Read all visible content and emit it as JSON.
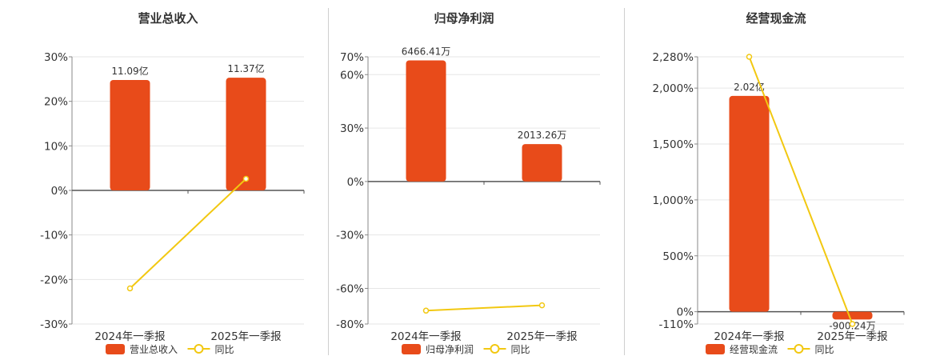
{
  "chart_data": [
    {
      "type": "bar",
      "title": "营业总收入",
      "categories": [
        "2024年一季报",
        "2025年一季报"
      ],
      "series": [
        {
          "name": "营业总收入",
          "kind": "bar",
          "values": [
            24.8,
            25.3
          ],
          "labels": [
            "11.09亿",
            "11.37亿"
          ]
        },
        {
          "name": "同比",
          "kind": "line",
          "values": [
            -22.0,
            2.6
          ]
        }
      ],
      "yticks": [
        "30%",
        "20%",
        "10%",
        "0%",
        "-10%",
        "-20%",
        "-30%"
      ],
      "ylim": [
        -30,
        30
      ],
      "grid": true,
      "legend": "bottom",
      "colors": {
        "bar": "#e84b1a",
        "line": "#f2c811"
      }
    },
    {
      "type": "bar",
      "title": "归母净利润",
      "categories": [
        "2024年一季报",
        "2025年一季报"
      ],
      "series": [
        {
          "name": "归母净利润",
          "kind": "bar",
          "values": [
            68.0,
            21.0
          ],
          "labels": [
            "6466.41万",
            "2013.26万"
          ]
        },
        {
          "name": "同比",
          "kind": "line",
          "values": [
            -72.5,
            -69.5
          ]
        }
      ],
      "yticks": [
        "70%",
        "60%",
        "30%",
        "0%",
        "-30%",
        "-60%",
        "-80%"
      ],
      "ylim": [
        -80,
        70
      ],
      "grid": true,
      "legend": "bottom",
      "colors": {
        "bar": "#e84b1a",
        "line": "#f2c811"
      }
    },
    {
      "type": "bar",
      "title": "经营现金流",
      "categories": [
        "2024年一季报",
        "2025年一季报"
      ],
      "series": [
        {
          "name": "经营现金流",
          "kind": "bar",
          "values": [
            1930,
            -70
          ],
          "labels": [
            "2.02亿",
            "-900.24万"
          ]
        },
        {
          "name": "同比",
          "kind": "line",
          "values": [
            2280,
            -110
          ]
        }
      ],
      "yticks": [
        "2,280%",
        "2,000%",
        "1,500%",
        "1,000%",
        "500%",
        "0%",
        "-110%"
      ],
      "ylim": [
        -110,
        2280
      ],
      "grid": true,
      "legend": "bottom",
      "colors": {
        "bar": "#e84b1a",
        "line": "#f2c811"
      }
    }
  ]
}
